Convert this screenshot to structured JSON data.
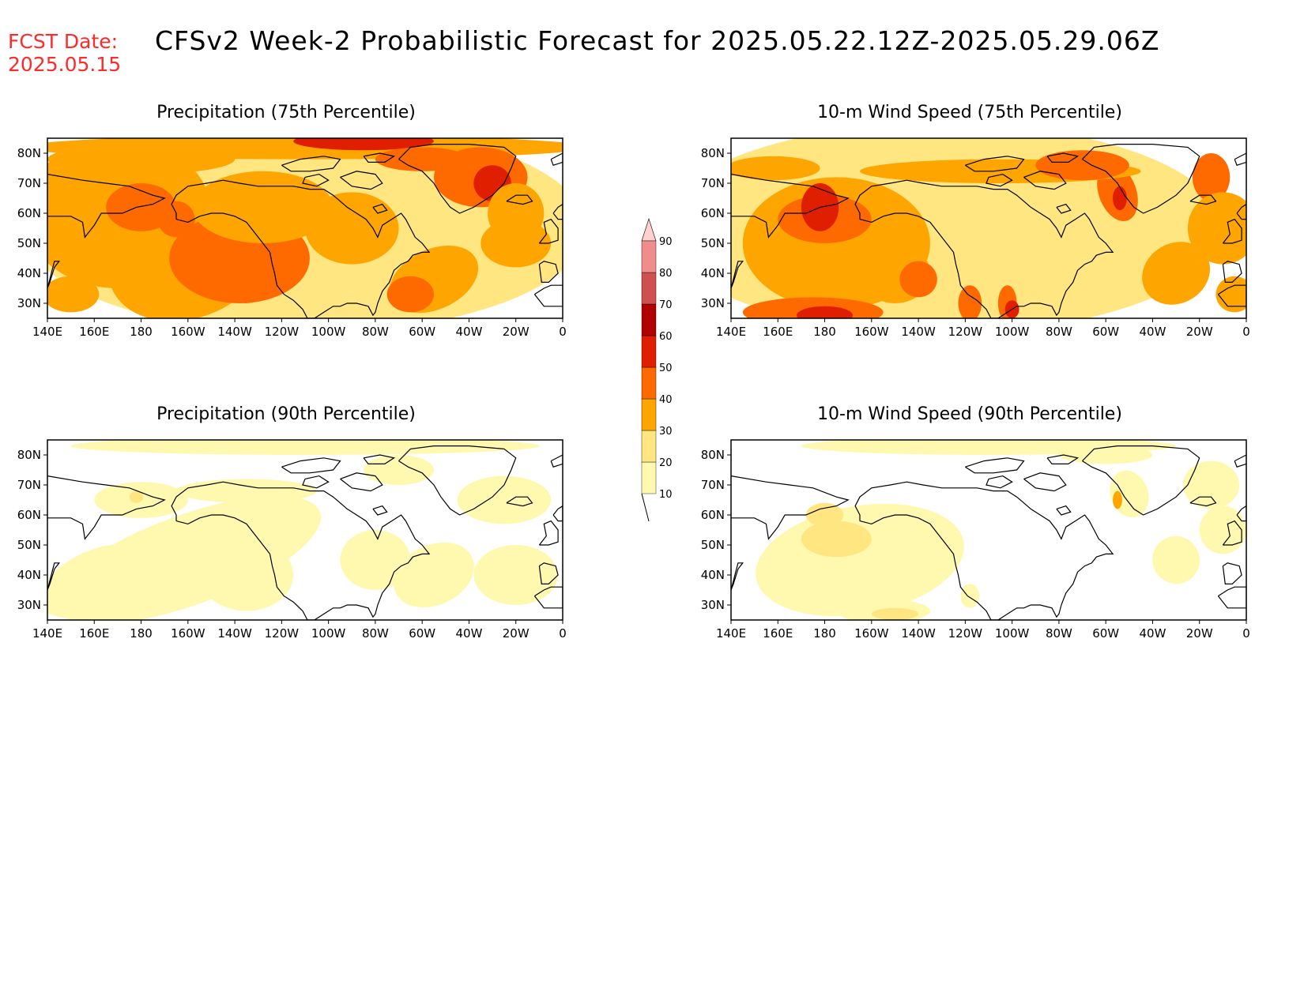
{
  "header": {
    "fcst_label": "FCST Date:",
    "fcst_date": "2025.05.15",
    "title": "CFSv2 Week-2 Probabilistic Forecast for 2025.05.22.12Z-2025.05.29.06Z"
  },
  "axes": {
    "lon_ticks": [
      "140E",
      "160E",
      "180",
      "160W",
      "140W",
      "120W",
      "100W",
      "80W",
      "60W",
      "40W",
      "20W",
      "0"
    ],
    "lat_ticks": [
      "80N",
      "70N",
      "60N",
      "50N",
      "40N",
      "30N"
    ],
    "lon_range": [
      140,
      360
    ],
    "lat_range": [
      25,
      85
    ]
  },
  "panels": [
    {
      "id": "precip75",
      "title": "Precipitation (75th Percentile)",
      "fill_level": "high"
    },
    {
      "id": "wind75",
      "title": "10-m Wind Speed (75th Percentile)",
      "fill_level": "high"
    },
    {
      "id": "precip90",
      "title": "Precipitation (90th Percentile)",
      "fill_level": "low"
    },
    {
      "id": "wind90",
      "title": "10-m Wind Speed (90th Percentile)",
      "fill_level": "low"
    }
  ],
  "colorbar": {
    "levels": [
      "10",
      "20",
      "30",
      "40",
      "50",
      "60",
      "70",
      "80",
      "90"
    ],
    "colors": [
      "#fff9b0",
      "#ffe680",
      "#ffa500",
      "#ff6a00",
      "#e01e00",
      "#b00000",
      "#d05050",
      "#f08c8c",
      "#ffd0d0"
    ]
  }
}
